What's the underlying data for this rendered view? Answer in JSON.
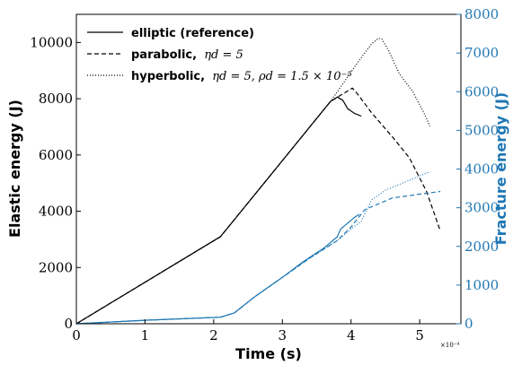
{
  "chart_data": {
    "type": "line",
    "xlabel": "Time (s)",
    "ylabel_left": "Elastic energy (J)",
    "ylabel_right": "Fracture energy (J)",
    "x_scale_label": "×10⁻⁴",
    "xlim": [
      0,
      5.6
    ],
    "ylim_left": [
      0,
      11000
    ],
    "ylim_right": [
      0,
      8000
    ],
    "x_ticks": [
      0,
      1,
      2,
      3,
      4,
      5
    ],
    "x_tick_labels": [
      "0",
      "1",
      "2",
      "3",
      "4",
      "5"
    ],
    "y_left_ticks": [
      0,
      2000,
      4000,
      6000,
      8000,
      10000
    ],
    "y_left_tick_labels": [
      "0",
      "2000",
      "4000",
      "6000",
      "8000",
      "10000"
    ],
    "y_right_ticks": [
      0,
      1000,
      2000,
      3000,
      4000,
      5000,
      6000,
      7000,
      8000
    ],
    "y_right_tick_labels": [
      "0",
      "1000",
      "2000",
      "3000",
      "4000",
      "5000",
      "6000",
      "7000",
      "8000"
    ],
    "colors": {
      "elastic": "#000000",
      "fracture": "#1f77b4"
    },
    "legend": {
      "placement": "top-left",
      "entries": [
        {
          "style": "solid",
          "bold": "elliptic (reference)",
          "math": ""
        },
        {
          "style": "dashed",
          "bold": "parabolic,",
          "math": "ηd = 5"
        },
        {
          "style": "dotted",
          "bold": "hyperbolic,",
          "math": "ηd = 5, ρd = 1.5 × 10⁻⁵"
        }
      ]
    },
    "series": [
      {
        "axis": "left",
        "style": "solid",
        "x": [
          0,
          2.1,
          3.0,
          3.5,
          3.7,
          3.8,
          3.88,
          3.95,
          4.05,
          4.15
        ],
        "y": [
          0,
          3100,
          5800,
          7300,
          7900,
          8060,
          7950,
          7650,
          7480,
          7380
        ]
      },
      {
        "axis": "left",
        "style": "dashed",
        "x": [
          0,
          2.1,
          3.0,
          3.7,
          3.9,
          4.02,
          4.1,
          4.3,
          4.6,
          4.85,
          5.1,
          5.3
        ],
        "y": [
          0,
          3100,
          5800,
          7900,
          8200,
          8380,
          8150,
          7500,
          6650,
          5900,
          4700,
          3300
        ]
      },
      {
        "axis": "left",
        "style": "dotted",
        "x": [
          0,
          2.1,
          3.0,
          3.7,
          3.9,
          4.1,
          4.3,
          4.4,
          4.45,
          4.55,
          4.7,
          4.9,
          5.05,
          5.15
        ],
        "y": [
          0,
          3100,
          5800,
          7900,
          8600,
          9300,
          9950,
          10150,
          10120,
          9700,
          8900,
          8250,
          7550,
          7020
        ]
      },
      {
        "axis": "right",
        "style": "solid",
        "x": [
          0,
          1.0,
          2.1,
          2.3,
          2.6,
          3.0,
          3.3,
          3.6,
          3.8,
          3.85,
          3.95,
          4.05,
          4.12
        ],
        "y": [
          0,
          90,
          170,
          280,
          700,
          1200,
          1600,
          1950,
          2250,
          2450,
          2600,
          2750,
          2830
        ]
      },
      {
        "axis": "right",
        "style": "dashed",
        "x": [
          0,
          1.0,
          2.1,
          2.3,
          2.6,
          3.0,
          3.4,
          3.8,
          4.0,
          4.2,
          4.6,
          5.0,
          5.3
        ],
        "y": [
          0,
          90,
          170,
          280,
          700,
          1200,
          1700,
          2150,
          2500,
          2950,
          3250,
          3350,
          3420
        ]
      },
      {
        "axis": "right",
        "style": "dotted",
        "x": [
          0,
          1.0,
          2.1,
          2.3,
          2.6,
          3.0,
          3.4,
          3.8,
          4.0,
          4.15,
          4.3,
          4.5,
          4.7,
          4.9,
          5.15
        ],
        "y": [
          0,
          90,
          170,
          280,
          700,
          1200,
          1700,
          2150,
          2450,
          2650,
          3200,
          3450,
          3600,
          3750,
          3930
        ]
      }
    ]
  }
}
